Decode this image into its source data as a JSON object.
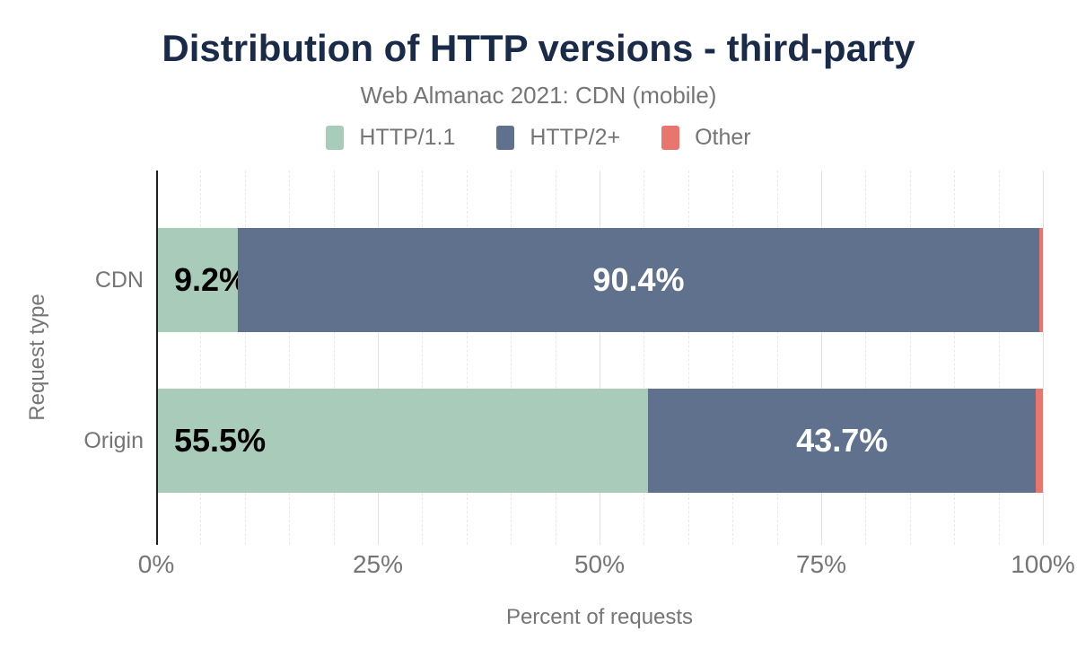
{
  "chart_data": {
    "type": "bar",
    "orientation": "horizontal",
    "stacked": true,
    "title": "Distribution of HTTP versions - third-party",
    "subtitle": "Web Almanac 2021: CDN (mobile)",
    "categories": [
      "CDN",
      "Origin"
    ],
    "series": [
      {
        "name": "HTTP/1.1",
        "color": "#a9cbb9",
        "text_color": "#000000",
        "label_position": "left",
        "values": [
          9.2,
          55.5
        ],
        "labels": [
          "9.2%",
          "55.5%"
        ]
      },
      {
        "name": "HTTP/2+",
        "color": "#5f718d",
        "text_color": "#ffffff",
        "label_position": "center",
        "values": [
          90.4,
          43.7
        ],
        "labels": [
          "90.4%",
          "43.7%"
        ]
      },
      {
        "name": "Other",
        "color": "#e8766e",
        "text_color": "",
        "label_position": "none",
        "values": [
          0.4,
          0.8
        ],
        "labels": [
          "",
          ""
        ]
      }
    ],
    "xlabel": "Percent of requests",
    "ylabel": "Request type",
    "xlim": [
      0,
      100
    ],
    "x_ticks": [
      {
        "value": 0,
        "label": "0%"
      },
      {
        "value": 25,
        "label": "25%"
      },
      {
        "value": 50,
        "label": "50%"
      },
      {
        "value": 75,
        "label": "75%"
      },
      {
        "value": 100,
        "label": "100%"
      }
    ],
    "minor_grid_step": 5,
    "grid": true,
    "legend_position": "top",
    "colors": {
      "title_text": "#1a2b49",
      "muted_text": "#757575",
      "axis_line": "#1f1f1f"
    }
  }
}
